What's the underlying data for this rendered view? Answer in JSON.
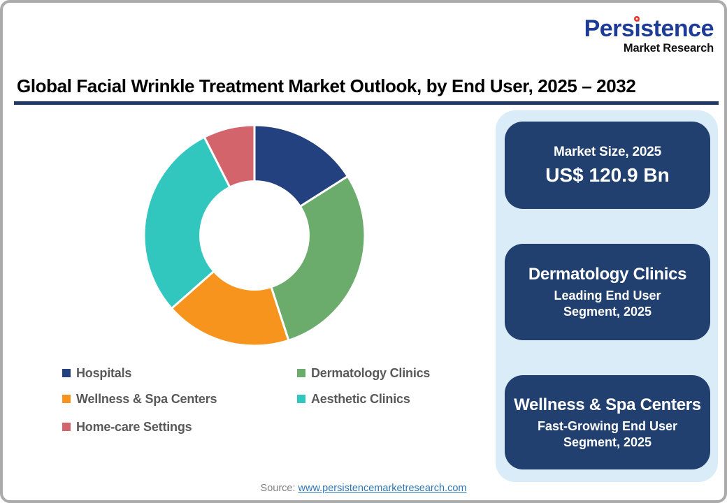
{
  "header": {
    "title": "Global Facial Wrinkle Treatment Market Outlook, by End User, 2025 – 2032"
  },
  "logo": {
    "wordmark": "Persistence",
    "subtitle": "Market Research",
    "wordmark_color": "#1e3c96",
    "dot_color": "#e8372c"
  },
  "chart_data": {
    "type": "pie",
    "subtype": "donut",
    "title": "Global Facial Wrinkle Treatment Market Outlook, by End User, 2025 – 2032",
    "categories": [
      "Hospitals",
      "Dermatology Clinics",
      "Wellness & Spa Centers",
      "Aesthetic Clinics",
      "Home-care Settings"
    ],
    "values": [
      16,
      29,
      18.5,
      29,
      7.5
    ],
    "unit": "percent-share-estimated-from-arc-angles",
    "colors": [
      "#24417f",
      "#6bac6c",
      "#f7941d",
      "#31c7bf",
      "#d4646c"
    ],
    "start_angle_deg": 0,
    "direction": "clockwise",
    "inner_radius_ratio": 0.49,
    "segment_gap_color": "#ffffff",
    "legend_position": "bottom-left",
    "data_labels": "none"
  },
  "cards": {
    "market_size": {
      "label": "Market Size, 2025",
      "value": "US$ 120.9 Bn"
    },
    "leading": {
      "title": "Dermatology Clinics",
      "line1": "Leading End User",
      "line2": "Segment, 2025"
    },
    "fast_growing": {
      "title": "Wellness & Spa Centers",
      "line1": "Fast-Growing End User",
      "line2": "Segment, 2025"
    }
  },
  "panel": {
    "background": "#d9ecf8",
    "card_background": "#21406f"
  },
  "footer": {
    "source_label": "Source:",
    "source_link": "www.persistencemarketresearch.com"
  }
}
